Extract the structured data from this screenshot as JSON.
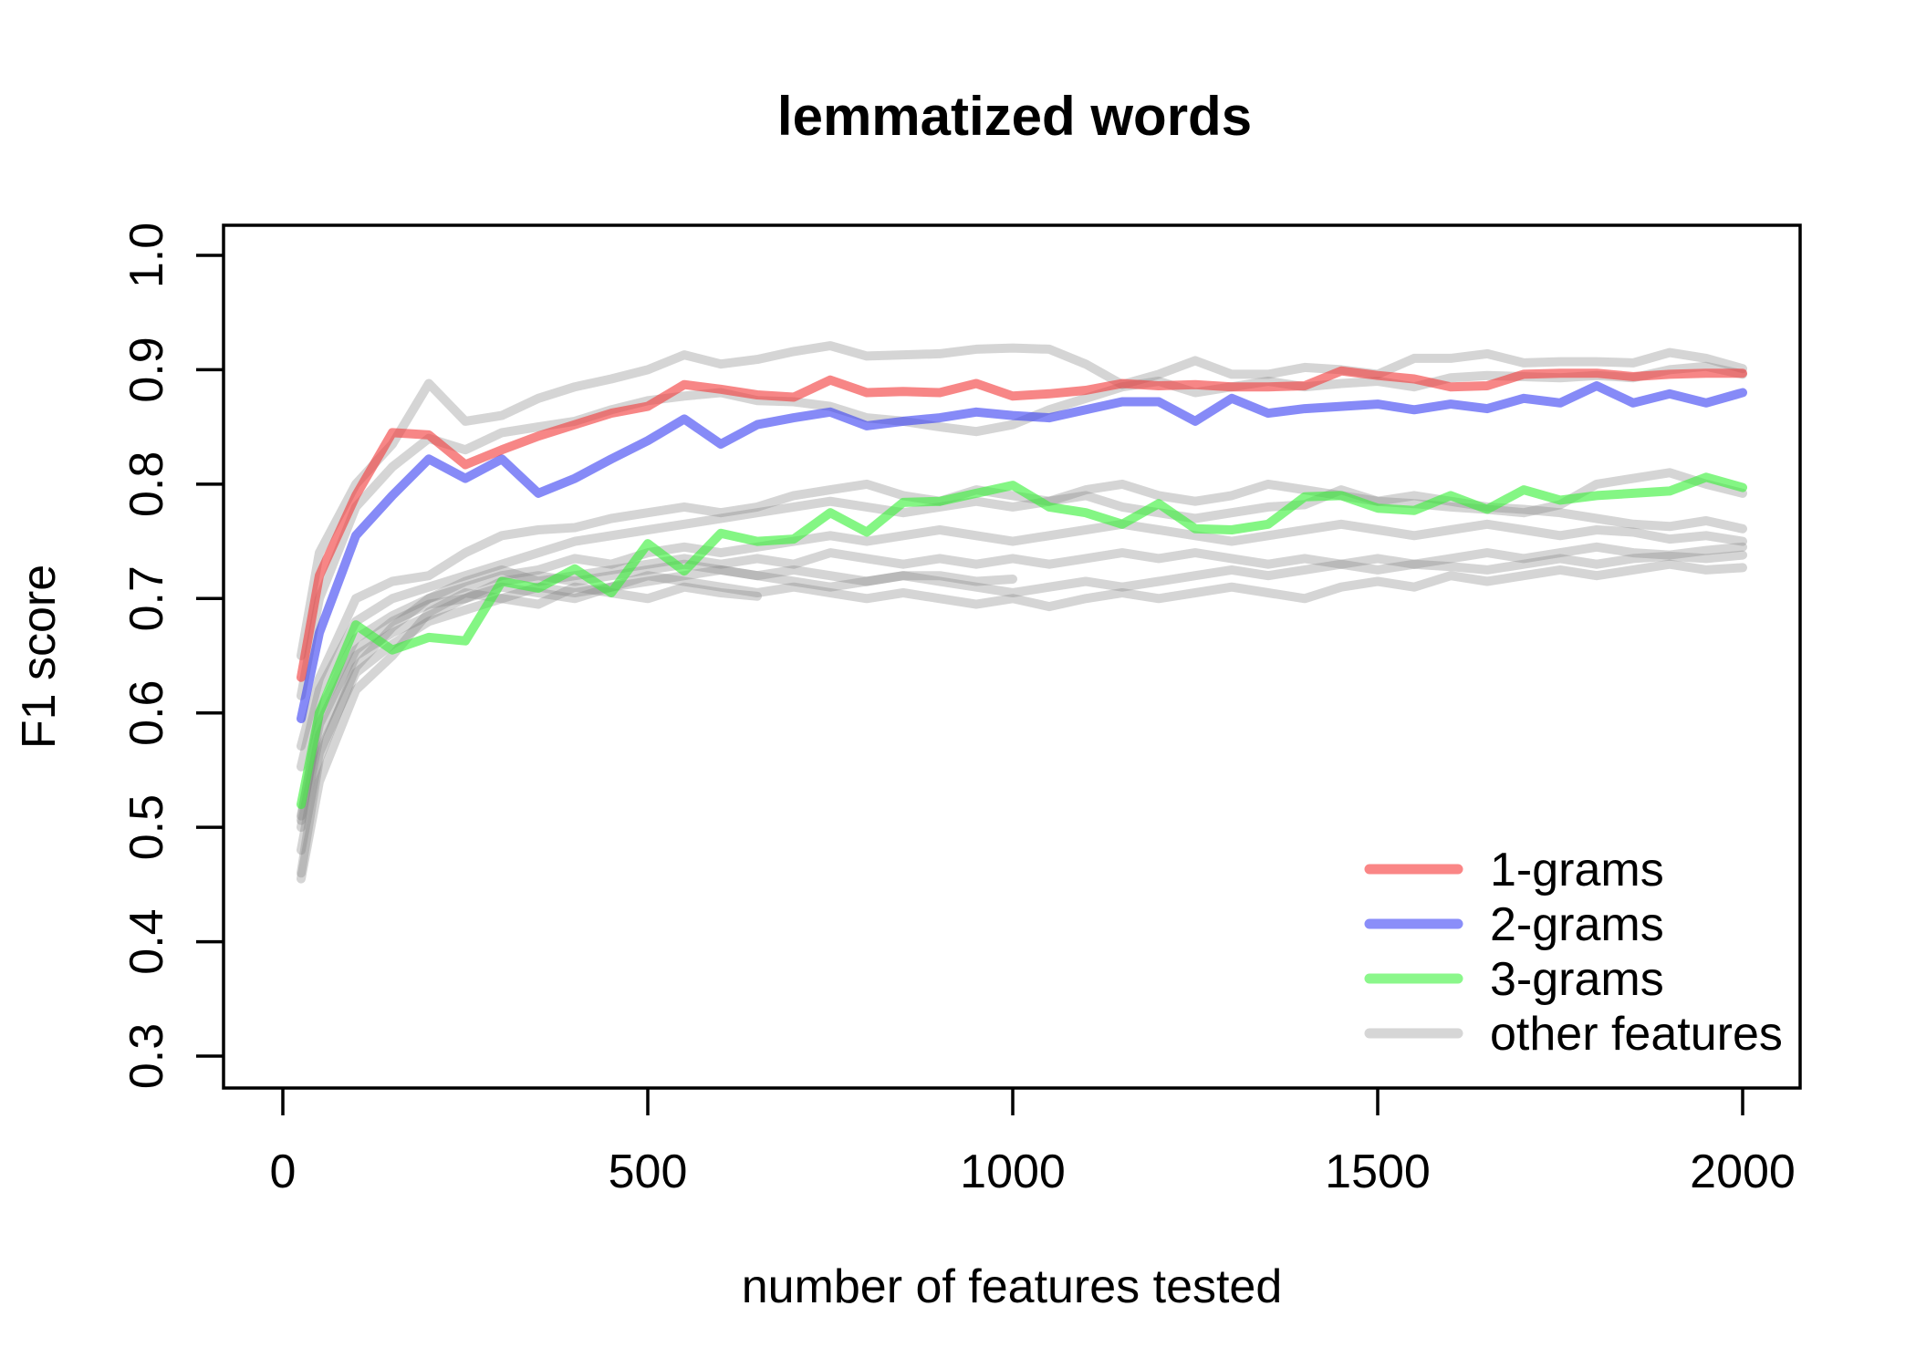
{
  "title": "lemmatized words",
  "axes": {
    "x": {
      "label": "number of features tested",
      "ticks": [
        0,
        500,
        1000,
        1500,
        2000
      ],
      "lim": [
        0,
        2000
      ]
    },
    "y": {
      "label": "F1 score",
      "ticks": [
        0.3,
        0.4,
        0.5,
        0.6,
        0.7,
        0.8,
        0.9,
        1.0
      ],
      "lim": [
        0.3,
        1.0
      ]
    }
  },
  "legend": {
    "items": [
      {
        "label": "1-grams",
        "color": "#FA8686"
      },
      {
        "label": "2-grams",
        "color": "#8A8EF9"
      },
      {
        "label": "3-grams",
        "color": "#8BF78B"
      },
      {
        "label": "other features",
        "color": "#D6D6D6"
      }
    ]
  },
  "chart_data": {
    "type": "line",
    "title": "lemmatized words",
    "xlabel": "number of features tested",
    "ylabel": "F1 score",
    "xlim": [
      0,
      2000
    ],
    "ylim": [
      0.3,
      1.0
    ],
    "grid": false,
    "legend_position": "bottom-right-inside",
    "x": [
      25,
      50,
      100,
      150,
      200,
      250,
      300,
      350,
      400,
      450,
      500,
      550,
      600,
      650,
      700,
      750,
      800,
      850,
      900,
      950,
      1000,
      1050,
      1100,
      1150,
      1200,
      1250,
      1300,
      1350,
      1400,
      1450,
      1500,
      1550,
      1600,
      1650,
      1700,
      1750,
      1800,
      1850,
      1900,
      1950,
      2000
    ],
    "series": [
      {
        "name": "other features",
        "color": "rgba(128,128,128,0.33)",
        "values": [
          0.65,
          0.74,
          0.8,
          0.835,
          0.888,
          0.855,
          0.86,
          0.875,
          0.885,
          0.892,
          0.9,
          0.913,
          0.905,
          0.909,
          0.916,
          0.921,
          0.912,
          0.913,
          0.914,
          0.918,
          0.919,
          0.918,
          0.905,
          0.887,
          0.896,
          0.908,
          0.896,
          0.896,
          0.902,
          0.9,
          0.896,
          0.91,
          0.91,
          0.914,
          0.906,
          0.907,
          0.907,
          0.906,
          0.915,
          0.91,
          0.901
        ]
      },
      {
        "name": "other features",
        "color": "rgba(128,128,128,0.33)",
        "values": [
          0.615,
          0.7,
          0.78,
          0.815,
          0.84,
          0.83,
          0.845,
          0.85,
          0.855,
          0.865,
          0.873,
          0.877,
          0.88,
          0.873,
          0.872,
          0.868,
          0.858,
          0.855,
          0.85,
          0.846,
          0.852,
          0.865,
          0.875,
          0.885,
          0.89,
          0.88,
          0.885,
          0.89,
          0.885,
          0.888,
          0.89,
          0.885,
          0.893,
          0.895,
          0.894,
          0.893,
          0.895,
          0.893,
          0.9,
          0.903,
          0.896
        ]
      },
      {
        "name": "other features",
        "color": "rgba(128,128,128,0.33)",
        "values": [
          0.571,
          0.63,
          0.7,
          0.715,
          0.72,
          0.74,
          0.755,
          0.76,
          0.762,
          0.77,
          0.775,
          0.78,
          0.775,
          0.78,
          0.79,
          0.795,
          0.8,
          0.79,
          0.785,
          0.795,
          0.79,
          0.785,
          0.79,
          0.78,
          0.775,
          0.77,
          0.775,
          0.78,
          0.782,
          0.795,
          0.785,
          0.79,
          0.785,
          0.78,
          0.778,
          0.775,
          0.77,
          0.765,
          0.763,
          0.768,
          0.761
        ]
      },
      {
        "name": "other features",
        "color": "rgba(128,128,128,0.33)",
        "values": [
          0.553,
          0.62,
          0.68,
          0.7,
          0.71,
          0.72,
          0.73,
          0.74,
          0.75,
          0.755,
          0.76,
          0.765,
          0.77,
          0.775,
          0.78,
          0.785,
          0.78,
          0.775,
          0.78,
          0.785,
          0.78,
          0.785,
          0.795,
          0.8,
          0.79,
          0.785,
          0.79,
          0.8,
          0.795,
          0.79,
          0.785,
          0.783,
          0.78,
          0.778,
          0.775,
          0.782,
          0.8,
          0.805,
          0.81,
          0.8,
          0.792
        ]
      },
      {
        "name": "other features",
        "color": "rgba(128,128,128,0.33)",
        "values": [
          0.506,
          0.6,
          0.665,
          0.685,
          0.7,
          0.71,
          0.72,
          0.725,
          0.735,
          0.73,
          0.74,
          0.745,
          0.74,
          0.745,
          0.75,
          0.755,
          0.75,
          0.755,
          0.76,
          0.755,
          0.75,
          0.755,
          0.76,
          0.765,
          0.76,
          0.755,
          0.75,
          0.755,
          0.76,
          0.765,
          0.76,
          0.755,
          0.76,
          0.765,
          0.76,
          0.755,
          0.76,
          0.758,
          0.752,
          0.755,
          0.75
        ]
      },
      {
        "name": "other features",
        "color": "rgba(128,128,128,0.33)",
        "values": [
          0.46,
          0.56,
          0.64,
          0.675,
          0.7,
          0.715,
          0.725,
          0.715,
          0.72,
          0.725,
          0.73,
          0.735,
          0.73,
          0.735,
          0.73,
          0.74,
          0.735,
          0.73,
          0.735,
          0.73,
          0.735,
          0.73,
          0.735,
          0.74,
          0.735,
          0.74,
          0.735,
          0.73,
          0.735,
          0.73,
          0.735,
          0.73,
          0.735,
          0.74,
          0.735,
          0.74,
          0.745,
          0.74,
          0.738,
          0.742,
          0.745
        ]
      },
      {
        "name": "other features",
        "color": "rgba(128,128,128,0.33)",
        "values": [
          0.5,
          0.58,
          0.65,
          0.67,
          0.685,
          0.7,
          0.71,
          0.705,
          0.7,
          0.71,
          0.715,
          0.72,
          0.725,
          0.72,
          0.715,
          0.71,
          0.715,
          0.72,
          0.715,
          0.71,
          0.705,
          0.71,
          0.715,
          0.71,
          0.715,
          0.72,
          0.725,
          0.72,
          0.725,
          0.73,
          0.725,
          0.73,
          0.728,
          0.725,
          0.73,
          0.735,
          0.73,
          0.735,
          0.737,
          0.735,
          0.738
        ]
      },
      {
        "name": "other features",
        "color": "rgba(128,128,128,0.33)",
        "values": [
          0.48,
          0.565,
          0.635,
          0.66,
          0.68,
          0.69,
          0.7,
          0.71,
          0.705,
          0.71,
          0.72,
          0.715,
          0.71,
          0.705,
          0.71,
          0.705,
          0.7,
          0.705,
          0.7,
          0.695,
          0.7,
          0.693,
          0.7,
          0.705,
          0.7,
          0.705,
          0.71,
          0.705,
          0.7,
          0.71,
          0.715,
          0.71,
          0.72,
          0.715,
          0.72,
          0.725,
          0.72,
          0.725,
          0.73,
          0.725,
          0.727
        ]
      },
      {
        "name": "other features",
        "color": "rgba(128,128,128,0.33)",
        "values": [
          0.455,
          0.54,
          0.62,
          0.65,
          0.688,
          0.705,
          0.7,
          0.695,
          0.71,
          0.705,
          0.7,
          0.71,
          0.705,
          0.702
        ]
      },
      {
        "name": "other features",
        "color": "rgba(128,128,128,0.33)",
        "values": [
          0.51,
          0.59,
          0.655,
          0.68,
          0.695,
          0.7,
          0.715,
          0.72,
          0.715,
          0.72,
          0.725,
          0.73,
          0.725,
          0.72,
          0.725,
          0.72,
          0.715,
          0.72,
          0.72,
          0.715,
          0.717
        ]
      },
      {
        "name": "3-grams",
        "color": "rgba(56,240,56,0.62)",
        "values": [
          0.52,
          0.6,
          0.677,
          0.655,
          0.666,
          0.663,
          0.715,
          0.709,
          0.726,
          0.705,
          0.748,
          0.724,
          0.757,
          0.75,
          0.752,
          0.775,
          0.758,
          0.784,
          0.785,
          0.792,
          0.799,
          0.78,
          0.775,
          0.765,
          0.783,
          0.761,
          0.76,
          0.765,
          0.789,
          0.79,
          0.779,
          0.777,
          0.79,
          0.778,
          0.795,
          0.786,
          0.79,
          0.792,
          0.794,
          0.806,
          0.797
        ]
      },
      {
        "name": "2-grams",
        "color": "rgba(60,66,242,0.62)",
        "values": [
          0.595,
          0.67,
          0.755,
          0.79,
          0.822,
          0.805,
          0.822,
          0.792,
          0.805,
          0.822,
          0.838,
          0.857,
          0.835,
          0.852,
          0.858,
          0.863,
          0.851,
          0.855,
          0.858,
          0.863,
          0.86,
          0.858,
          0.865,
          0.872,
          0.872,
          0.855,
          0.875,
          0.862,
          0.866,
          0.868,
          0.87,
          0.865,
          0.87,
          0.866,
          0.875,
          0.871,
          0.886,
          0.871,
          0.879,
          0.871,
          0.88
        ]
      },
      {
        "name": "1-grams",
        "color": "rgba(242,60,60,0.62)",
        "values": [
          0.631,
          0.72,
          0.79,
          0.845,
          0.843,
          0.817,
          0.83,
          0.842,
          0.852,
          0.862,
          0.868,
          0.887,
          0.883,
          0.878,
          0.876,
          0.891,
          0.88,
          0.881,
          0.88,
          0.888,
          0.877,
          0.879,
          0.882,
          0.888,
          0.886,
          0.887,
          0.885,
          0.885,
          0.886,
          0.899,
          0.895,
          0.892,
          0.885,
          0.886,
          0.896,
          0.897,
          0.897,
          0.894,
          0.896,
          0.897,
          0.897
        ]
      }
    ]
  }
}
